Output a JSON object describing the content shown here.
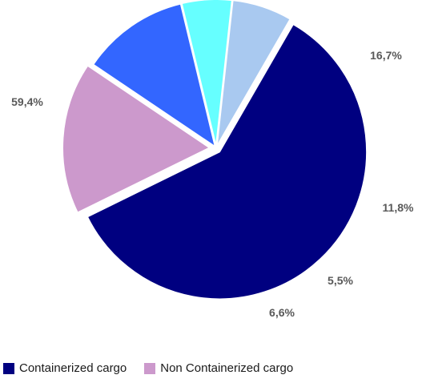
{
  "chart_data": {
    "type": "pie",
    "slices": [
      {
        "label": "59,4%",
        "value": 59.4,
        "color": "#000080"
      },
      {
        "label": "16,7%",
        "value": 16.7,
        "color": "#CC99CC"
      },
      {
        "label": "11,8%",
        "value": 11.8,
        "color": "#3366FF"
      },
      {
        "label": "5,5%",
        "value": 5.5,
        "color": "#66FFFF"
      },
      {
        "label": "6,6%",
        "value": 6.6,
        "color": "#A9C9F0"
      }
    ],
    "legend": [
      {
        "label": "Containerized cargo",
        "color": "#000080"
      },
      {
        "label": "Non Containerized cargo",
        "color": "#CC99CC"
      }
    ],
    "legend_position": "bottom"
  }
}
